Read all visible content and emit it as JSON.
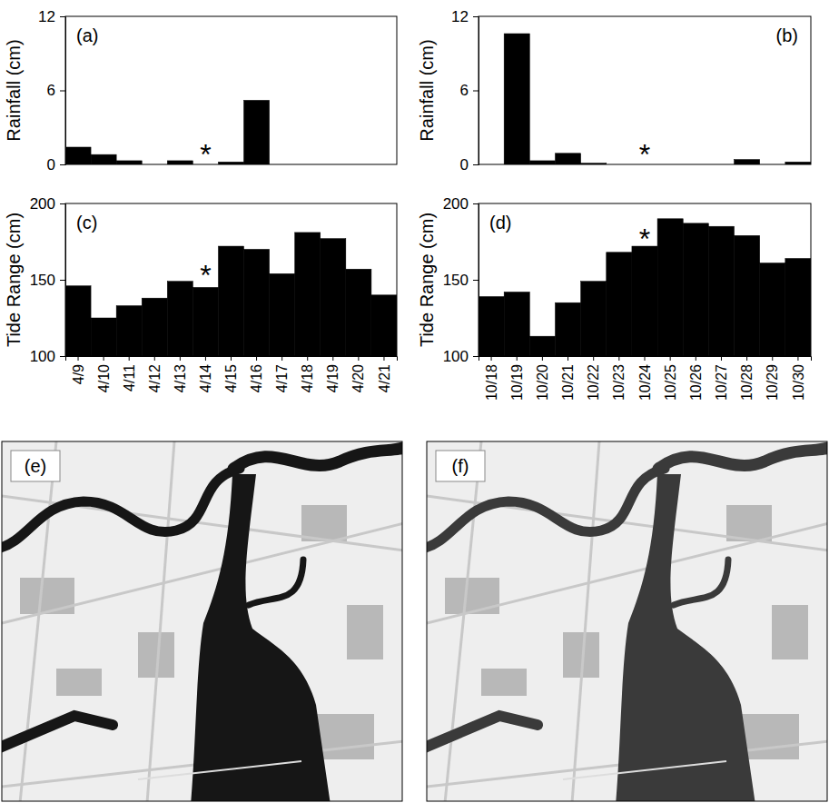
{
  "chart_data": [
    {
      "type": "bar",
      "panel_label": "(a)",
      "ylabel": "Rainfall (cm)",
      "categories": [
        null,
        null,
        null,
        null,
        null,
        null,
        null,
        null,
        null,
        null,
        null,
        null,
        null
      ],
      "values": [
        1.4,
        0.8,
        0.3,
        0,
        0.3,
        0,
        0.2,
        5.2,
        0,
        0,
        0,
        0,
        0
      ],
      "color": "#000000",
      "ylim": [
        0,
        12
      ],
      "yticks": [
        0,
        6,
        12
      ],
      "tick_labels": "y",
      "annotations": [
        {
          "text": "*",
          "index": 5,
          "y": 1.3
        }
      ]
    },
    {
      "type": "bar",
      "panel_label": "(b)",
      "ylabel": "Rainfall (cm)",
      "categories": [
        null,
        null,
        null,
        null,
        null,
        null,
        null,
        null,
        null,
        null,
        null,
        null,
        null
      ],
      "values": [
        0,
        10.6,
        0.3,
        0.9,
        0.1,
        0,
        0,
        0,
        0,
        0,
        0.4,
        0,
        0.2
      ],
      "color": "#000000",
      "ylim": [
        0,
        12
      ],
      "yticks": [
        0,
        6,
        12
      ],
      "tick_labels": "y",
      "annotations": [
        {
          "text": "*",
          "index": 6,
          "y": 1.3
        }
      ]
    },
    {
      "type": "bar",
      "panel_label": "(c)",
      "ylabel": "Tide Range (cm)",
      "categories": [
        "4/9",
        "4/10",
        "4/11",
        "4/12",
        "4/13",
        "4/14",
        "4/15",
        "4/16",
        "4/17",
        "4/18",
        "4/19",
        "4/20",
        "4/21"
      ],
      "values": [
        146,
        125,
        133,
        138,
        149,
        145,
        172,
        170,
        154,
        181,
        177,
        157,
        140
      ],
      "color": "#000000",
      "ylim": [
        100,
        200
      ],
      "yticks": [
        100,
        150,
        200
      ],
      "annotations": [
        {
          "text": "*",
          "index": 5,
          "y": 157
        }
      ]
    },
    {
      "type": "bar",
      "panel_label": "(d)",
      "ylabel": "Tide Range (cm)",
      "categories": [
        "10/18",
        "10/19",
        "10/20",
        "10/21",
        "10/22",
        "10/23",
        "10/24",
        "10/25",
        "10/26",
        "10/27",
        "10/28",
        "10/29",
        "10/30"
      ],
      "values": [
        139,
        142,
        113,
        135,
        149,
        168,
        172,
        190,
        187,
        185,
        179,
        161,
        164
      ],
      "color": "#000000",
      "ylim": [
        100,
        200
      ],
      "yticks": [
        100,
        150,
        200
      ],
      "annotations": [
        {
          "text": "*",
          "index": 6,
          "y": 181
        }
      ]
    }
  ],
  "images": [
    {
      "panel_label": "(e)"
    },
    {
      "panel_label": "(f)"
    }
  ]
}
